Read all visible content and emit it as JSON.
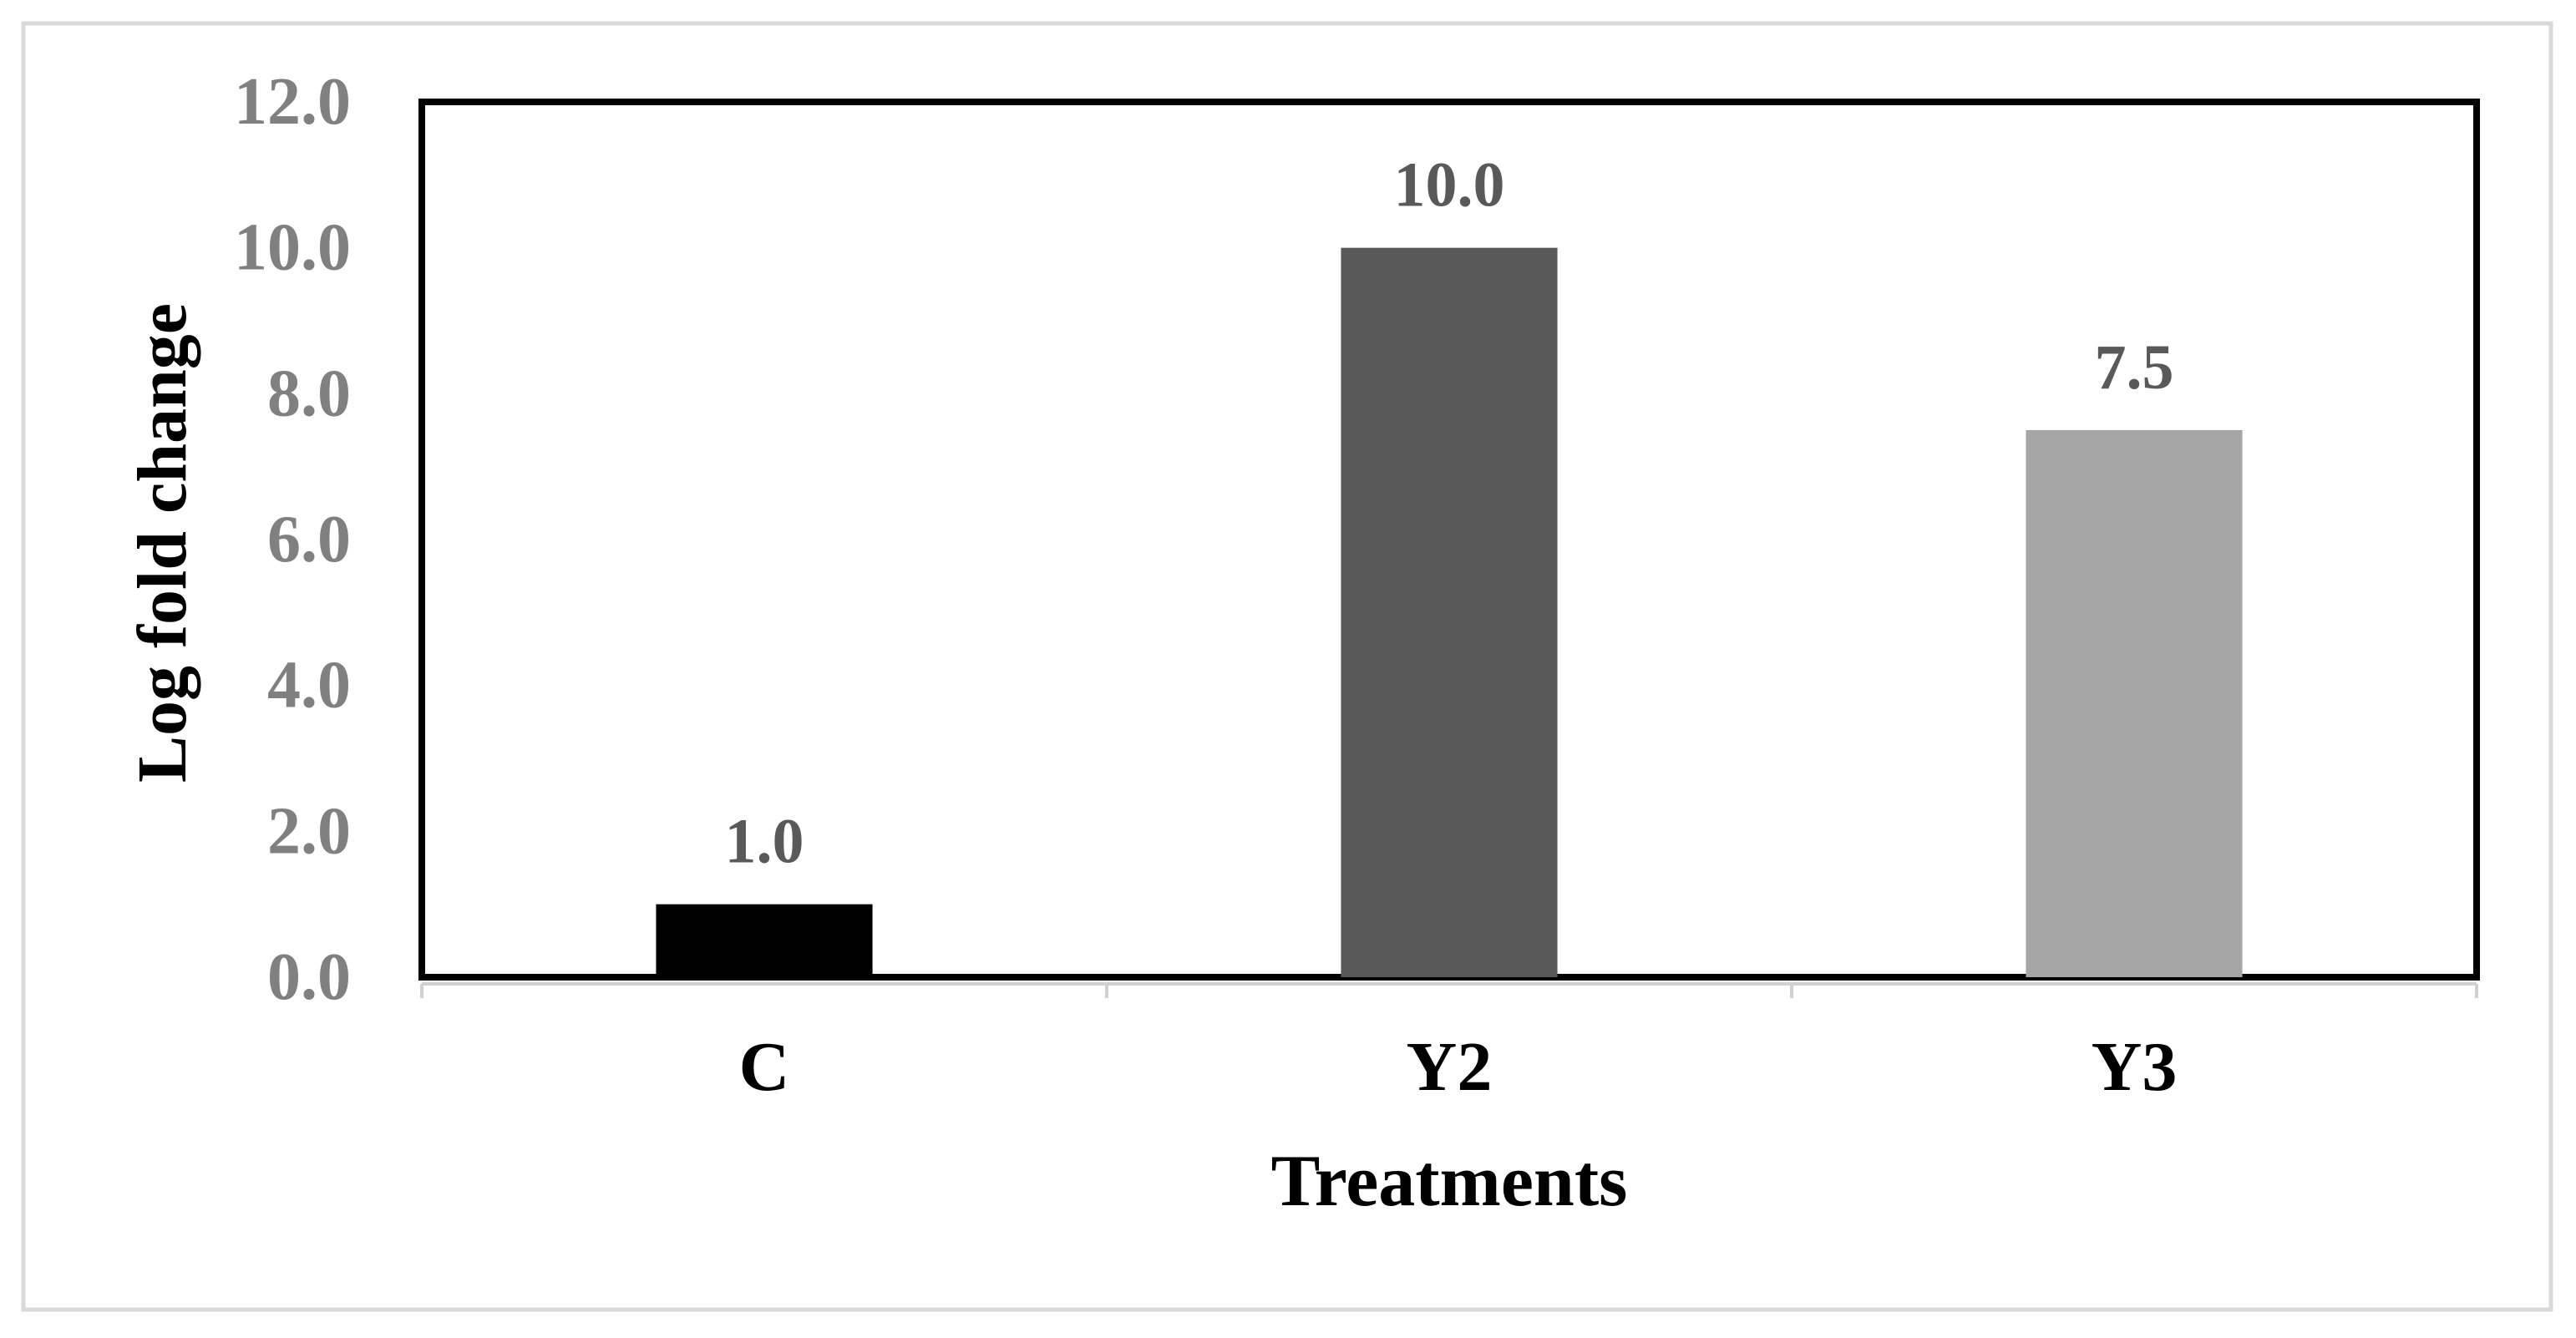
{
  "chart_data": {
    "type": "bar",
    "title": "",
    "xlabel": "Treatments",
    "ylabel": "Log fold change",
    "categories": [
      "C",
      "Y2",
      "Y3"
    ],
    "values": [
      1.0,
      10.0,
      7.5
    ],
    "data_labels": [
      "1.0",
      "10.0",
      "7.5"
    ],
    "bar_colors": [
      "#000000",
      "#595959",
      "#a6a6a6"
    ],
    "ylim": [
      0,
      12
    ],
    "y_ticks": [
      0,
      2,
      4,
      6,
      8,
      10,
      12
    ],
    "y_tick_labels": [
      "0.0",
      "2.0",
      "4.0",
      "6.0",
      "8.0",
      "10.0",
      "12.0"
    ],
    "grid": false,
    "legend": "none",
    "colors": {
      "tick_label": "#808080",
      "data_label": "#595959",
      "axis_title": "#000000",
      "frame": "#000000",
      "outer_border": "#d9d9d9"
    }
  }
}
